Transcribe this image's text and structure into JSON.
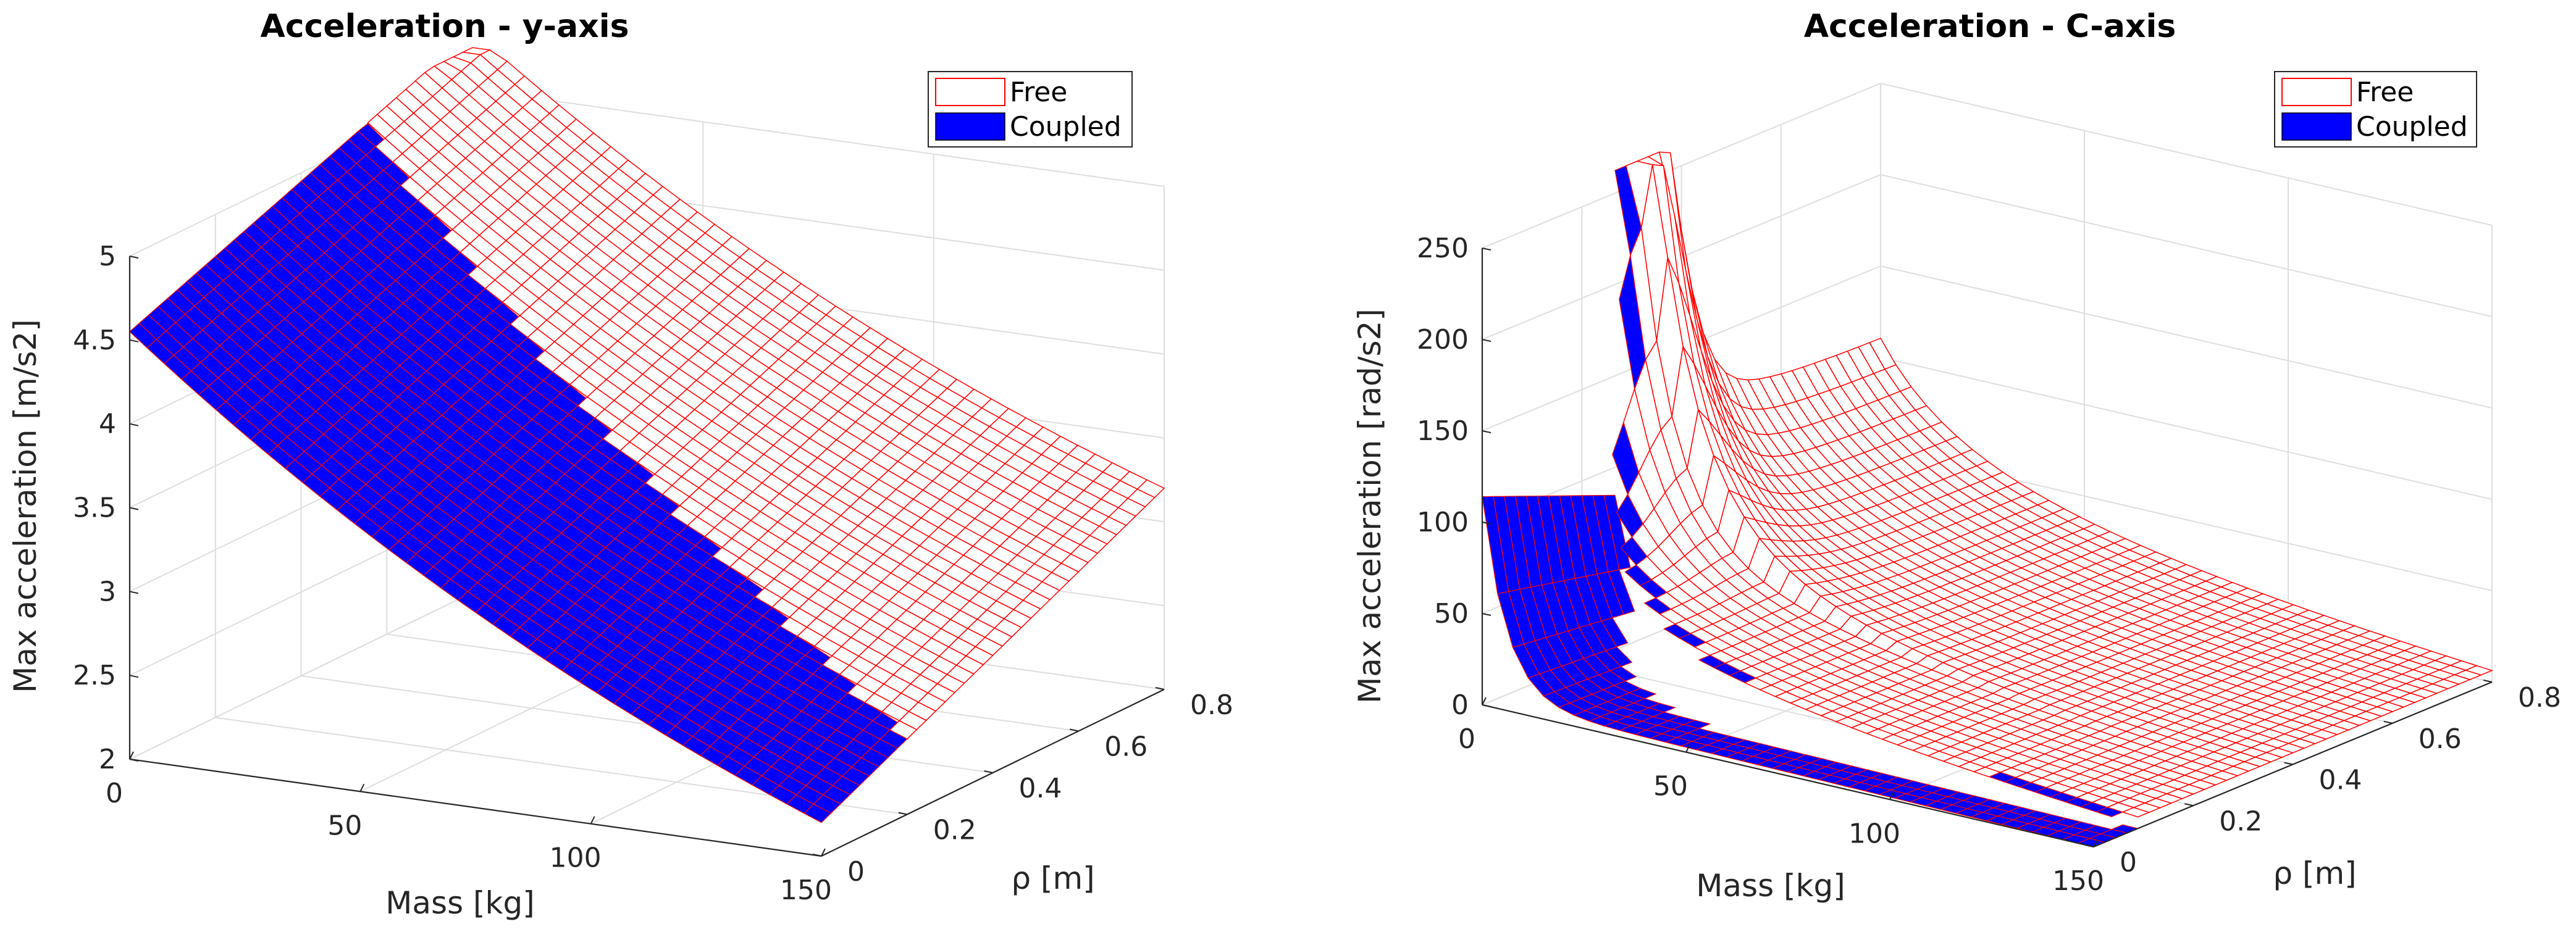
{
  "colors": {
    "free": "#ff0000",
    "coupled": "#0000ff",
    "grid": "#dedede",
    "axis": "#262626"
  },
  "chart_data": [
    {
      "type": "surface",
      "title": "Acceleration - y-axis",
      "xlabel": "Mass [kg]",
      "ylabel": "ρ [m]",
      "zlabel": "Max acceleration [m/s2]",
      "xlim": [
        0,
        150
      ],
      "ylim": [
        0,
        0.8
      ],
      "zlim": [
        2,
        5
      ],
      "xticks": [
        0,
        50,
        100,
        150
      ],
      "xtick_labels": [
        "0",
        "50",
        "100",
        "150"
      ],
      "yticks": [
        0,
        0.2,
        0.4,
        0.6,
        0.8
      ],
      "ytick_labels": [
        "0",
        "0.2",
        "0.4",
        "0.6",
        "0.8"
      ],
      "zticks": [
        2,
        2.5,
        3,
        3.5,
        4,
        4.5,
        5
      ],
      "ztick_labels": [
        "2",
        "2.5",
        "3",
        "3.5",
        "4",
        "4.5",
        "5"
      ],
      "legend": {
        "location": "top-right",
        "entries": [
          "Free",
          "Coupled"
        ]
      },
      "series": [
        {
          "name": "Free",
          "style": "mesh",
          "corner_values": {
            "mass_0_rho_0": 4.55,
            "mass_0_rho_0.8": 5.35,
            "mass_150_rho_0": 2.2,
            "mass_150_rho_0.8": 3.2
          }
        },
        {
          "name": "Coupled",
          "style": "surface",
          "corner_values": {
            "mass_0_rho_0": 4.55,
            "mass_150_rho_0": 2.2
          },
          "rho_limit_at_mass_0": 0.55,
          "rho_limit_at_mass_150": 0.2
        }
      ]
    },
    {
      "type": "surface",
      "title": "Acceleration - C-axis",
      "xlabel": "Mass [kg]",
      "ylabel": "ρ [m]",
      "zlabel": "Max acceleration [rad/s2]",
      "xlim": [
        0,
        150
      ],
      "ylim": [
        0,
        0.8
      ],
      "zlim": [
        0,
        250
      ],
      "xticks": [
        0,
        50,
        100,
        150
      ],
      "xtick_labels": [
        "0",
        "50",
        "100",
        "150"
      ],
      "yticks": [
        0,
        0.2,
        0.4,
        0.6,
        0.8
      ],
      "ytick_labels": [
        "0",
        "0.2",
        "0.4",
        "0.6",
        "0.8"
      ],
      "zticks": [
        0,
        50,
        100,
        150,
        200,
        250
      ],
      "ztick_labels": [
        "0",
        "50",
        "100",
        "150",
        "200",
        "250"
      ],
      "legend": {
        "location": "top-right",
        "entries": [
          "Free",
          "Coupled"
        ]
      },
      "series": [
        {
          "name": "Free",
          "style": "mesh",
          "peak_value": 215,
          "peak_at_rho": 0.3,
          "floor_value": 0
        },
        {
          "name": "Coupled",
          "style": "surface",
          "plateau_value": 110,
          "floor_value": 0
        }
      ]
    }
  ]
}
